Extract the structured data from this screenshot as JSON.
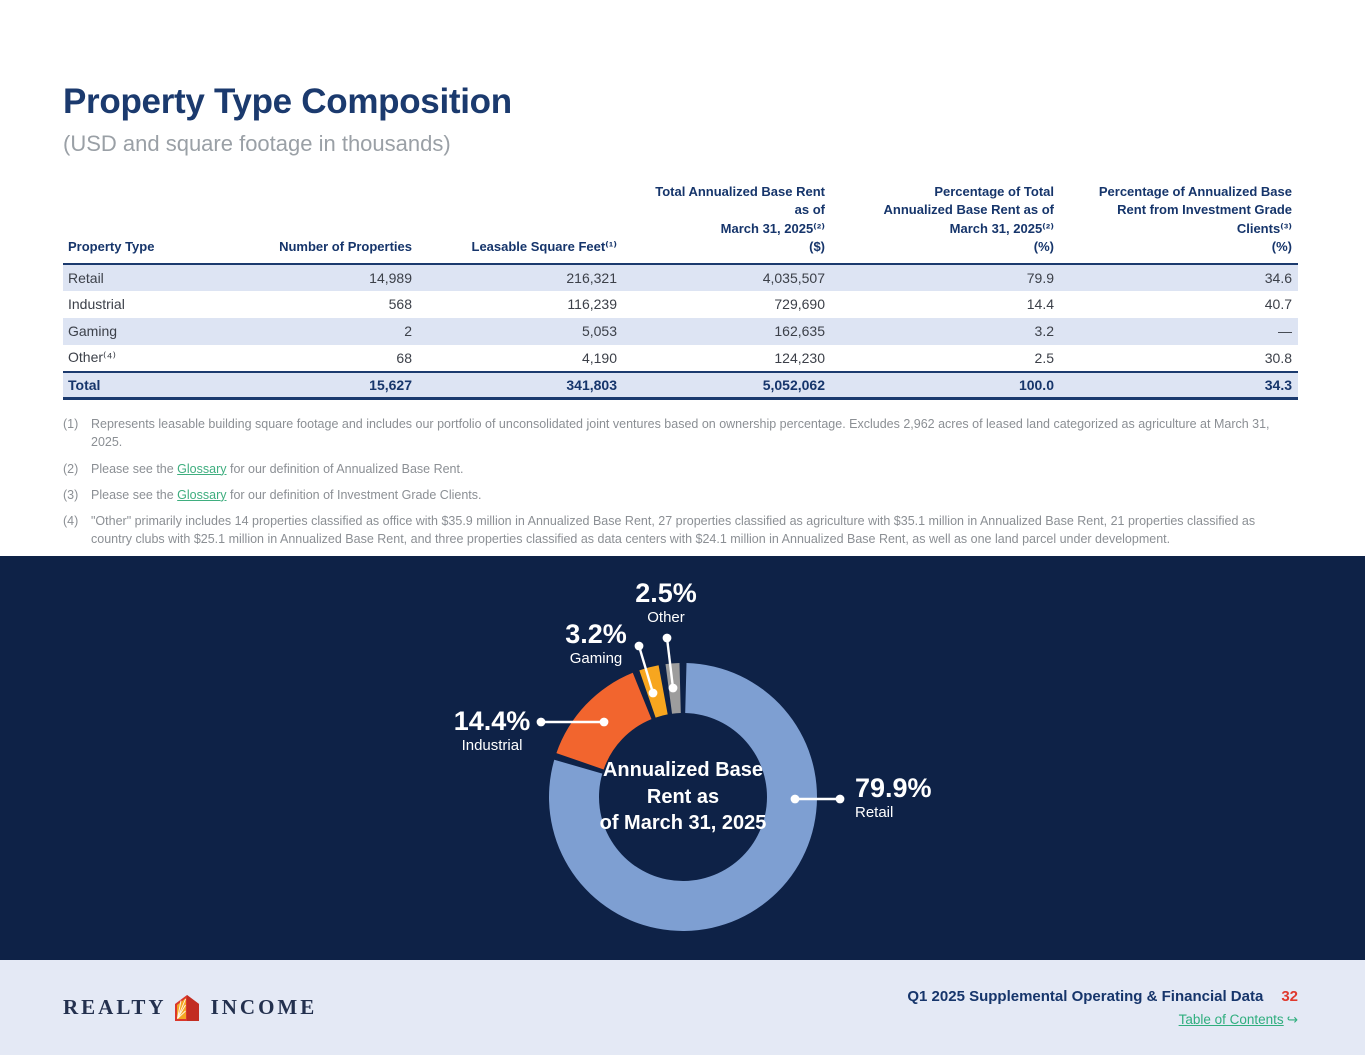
{
  "header": {
    "title": "Property Type Composition",
    "subtitle": "(USD and square footage in thousands)"
  },
  "table": {
    "columns": [
      {
        "lines": [
          "Property Type"
        ]
      },
      {
        "lines": [
          "Number of Properties"
        ]
      },
      {
        "lines": [
          "Leasable Square Feet⁽¹⁾"
        ]
      },
      {
        "lines": [
          "Total Annualized Base Rent",
          "as of",
          "March 31, 2025⁽²⁾",
          "($)"
        ]
      },
      {
        "lines": [
          "Percentage of Total",
          "Annualized Base Rent as of",
          "March 31, 2025⁽²⁾",
          "(%)"
        ]
      },
      {
        "lines": [
          "Percentage of Annualized Base",
          "Rent from Investment Grade",
          "Clients⁽³⁾",
          "(%)"
        ]
      }
    ],
    "rows": [
      {
        "cells": [
          "Retail",
          "14,989",
          "216,321",
          "4,035,507",
          "79.9",
          "34.6"
        ]
      },
      {
        "cells": [
          "Industrial",
          "568",
          "116,239",
          "729,690",
          "14.4",
          "40.7"
        ]
      },
      {
        "cells": [
          "Gaming",
          "2",
          "5,053",
          "162,635",
          "3.2",
          "—"
        ]
      },
      {
        "cells": [
          "Other⁽⁴⁾",
          "68",
          "4,190",
          "124,230",
          "2.5",
          "30.8"
        ]
      }
    ],
    "total_row": {
      "cells": [
        "Total",
        "15,627",
        "341,803",
        "5,052,062",
        "100.0",
        "34.3"
      ]
    }
  },
  "footnotes": [
    {
      "marker": "(1)",
      "pre": "Represents leasable building square footage and includes our portfolio of unconsolidated joint ventures based on ownership percentage. Excludes 2,962 acres of leased land categorized as agriculture at March 31, 2025."
    },
    {
      "marker": "(2)",
      "pre": "Please see the ",
      "link": "Glossary",
      "post": " for our definition of Annualized Base Rent."
    },
    {
      "marker": "(3)",
      "pre": "Please see the ",
      "link": "Glossary",
      "post": " for our definition of Investment Grade Clients."
    },
    {
      "marker": "(4)",
      "pre": "\"Other\" primarily includes 14 properties classified as office with $35.9 million in Annualized Base Rent, 27 properties classified as agriculture with $35.1 million in Annualized Base Rent, 21 properties classified as country clubs with $25.1 million in Annualized Base Rent, and three properties classified as data centers with $24.1 million in Annualized Base Rent, as well as one land parcel under development."
    }
  ],
  "chart_data": {
    "type": "pie",
    "subtype": "donut",
    "title": "Annualized Base Rent as of March 31, 2025",
    "categories": [
      "Retail",
      "Industrial",
      "Gaming",
      "Other"
    ],
    "values": [
      79.9,
      14.4,
      3.2,
      2.5
    ],
    "unit": "%",
    "colors": [
      "#7e9fd2",
      "#f2652e",
      "#f7a61f",
      "#9d9d9d"
    ],
    "background": "#0e2247",
    "direction": "clockwise",
    "start_angle_deg": 0,
    "legend_position": "callouts",
    "center_label_lines": [
      "Annualized Base",
      "Rent as",
      "of March 31, 2025"
    ],
    "callout_labels": [
      {
        "value": "79.9%",
        "name": "Retail"
      },
      {
        "value": "14.4%",
        "name": "Industrial"
      },
      {
        "value": "3.2%",
        "name": "Gaming"
      },
      {
        "value": "2.5%",
        "name": "Other"
      }
    ]
  },
  "footer": {
    "brand": {
      "word_left": "REALTY",
      "word_right": "INCOME"
    },
    "doc_title": "Q1 2025 Supplemental Operating & Financial Data",
    "page_number": "32",
    "toc_label": "Table of Contents",
    "toc_arrow": "↪"
  },
  "theme": {
    "navy": "#16356b",
    "section_navy": "#0e2247",
    "stripe_blue": "#dde4f3",
    "link_green": "#3fae7f",
    "page_number_red": "#e0392e",
    "footer_bg": "#e4e9f5"
  }
}
